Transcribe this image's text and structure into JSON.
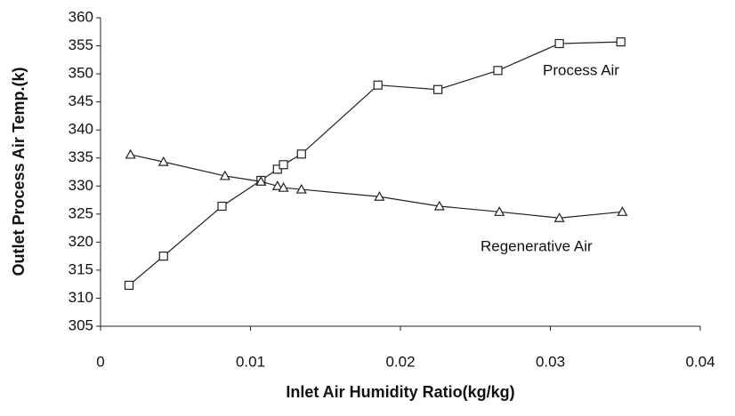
{
  "chart_data": {
    "type": "line",
    "x_label": "Inlet Air Humidity Ratio(kg/kg)",
    "y_label": "Outlet Process Air Temp.(k)",
    "xlim": [
      0,
      0.04
    ],
    "xticks": [
      0,
      0.01,
      0.02,
      0.03,
      0.04
    ],
    "ylim": [
      305,
      360
    ],
    "yticks": [
      305,
      310,
      315,
      320,
      325,
      330,
      335,
      340,
      345,
      350,
      355,
      360
    ],
    "grid": false,
    "series": [
      {
        "name": "Process Air",
        "color": "#222222",
        "marker": "square",
        "x": [
          0.0019,
          0.0042,
          0.0081,
          0.0107,
          0.0118,
          0.0122,
          0.0134,
          0.0185,
          0.0225,
          0.0265,
          0.0306,
          0.0347
        ],
        "values": [
          312.3,
          317.5,
          326.4,
          331,
          333,
          333.8,
          335.7,
          348,
          347.2,
          350.6,
          355.4,
          355.7
        ]
      },
      {
        "name": "Regenerative Air",
        "color": "#222222",
        "marker": "triangle",
        "x": [
          0.002,
          0.0042,
          0.0083,
          0.0107,
          0.0118,
          0.0122,
          0.0134,
          0.0186,
          0.0226,
          0.0266,
          0.0306,
          0.0348
        ],
        "values": [
          335.6,
          334.3,
          331.8,
          330.8,
          330,
          329.7,
          329.4,
          328.1,
          326.4,
          325.4,
          324.3,
          325.4
        ]
      }
    ]
  }
}
